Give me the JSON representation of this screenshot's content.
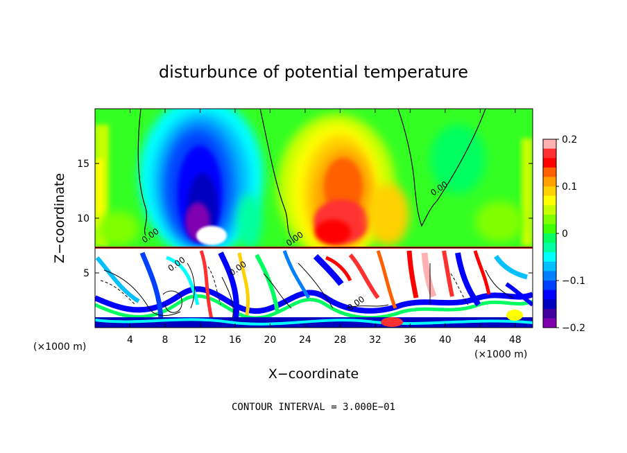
{
  "chart_data": {
    "type": "heatmap",
    "title": "disturbunce of potential temperature",
    "xlabel": "X−coordinate",
    "ylabel": "Z−coordinate",
    "x_unit_left": "(×1000 m)",
    "x_unit_right": "(×1000 m)",
    "xlim": [
      0,
      50
    ],
    "ylim": [
      0,
      20
    ],
    "x_ticks": [
      4,
      8,
      12,
      16,
      20,
      24,
      28,
      32,
      36,
      40,
      44,
      48
    ],
    "x_tick_labels": [
      "4",
      "8",
      "12",
      "16",
      "20",
      "24",
      "28",
      "32",
      "36",
      "40",
      "44",
      "48"
    ],
    "y_ticks": [
      5,
      10,
      15
    ],
    "y_tick_labels": [
      "5",
      "10",
      "15"
    ],
    "contour_interval_text": "CONTOUR INTERVAL = 3.000E−01",
    "contour_labels": [
      {
        "text": "0.00",
        "x": 6.5,
        "y": 8.2
      },
      {
        "text": "0.00",
        "x": 23.0,
        "y": 7.9
      },
      {
        "text": "0.00",
        "x": 39.5,
        "y": 12.5
      },
      {
        "text": "0.00",
        "x": 9.5,
        "y": 5.6
      },
      {
        "text": "0.00",
        "x": 16.5,
        "y": 5.2
      },
      {
        "text": "0.00",
        "x": 30.0,
        "y": 2.0
      }
    ],
    "colorbar": {
      "range": [
        -0.2,
        0.2
      ],
      "ticks": [
        0.2,
        0.1,
        0,
        -0.1,
        -0.2
      ],
      "tick_labels": [
        "0.2",
        "0.1",
        "0",
        "−0.1",
        "−0.2"
      ],
      "colors": [
        "#ffb0b0",
        "#ff3030",
        "#ff0000",
        "#ff6000",
        "#ffa000",
        "#ffd000",
        "#ffff00",
        "#c8ff00",
        "#80ff00",
        "#40ff00",
        "#00ff60",
        "#00ffa0",
        "#00ffff",
        "#00c0ff",
        "#0080ff",
        "#0040ff",
        "#0000ff",
        "#0000c0",
        "#4000a0",
        "#8000b0"
      ]
    },
    "field_features": [
      {
        "name": "cold-column",
        "x": 12.5,
        "y": 13.5,
        "value": -0.2
      },
      {
        "name": "cold-core",
        "x": 13.5,
        "y": 9.5,
        "value": -0.22
      },
      {
        "name": "warm-column",
        "x": 27.5,
        "y": 11.5,
        "value": 0.17
      },
      {
        "name": "warm-core",
        "x": 28.5,
        "y": 13.0,
        "value": 0.13
      },
      {
        "name": "left-yellow",
        "x": 0.8,
        "y": 13.0,
        "value": 0.07
      },
      {
        "name": "right-yellow",
        "x": 49.0,
        "y": 11.0,
        "value": 0.06
      },
      {
        "name": "shear-layer",
        "x": 25.0,
        "y": 7.4,
        "value": 0.2
      }
    ]
  }
}
